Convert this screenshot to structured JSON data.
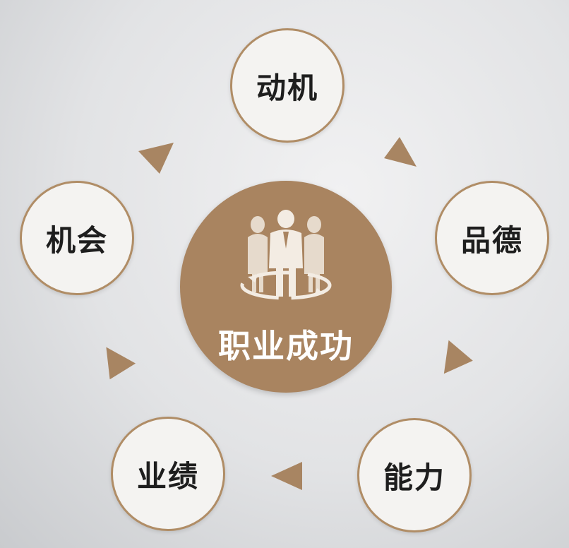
{
  "center": {
    "label": "职业成功",
    "icon": "team-people-icon"
  },
  "nodes": {
    "motive": "动机",
    "virtue": "品德",
    "ability": "能力",
    "performance": "业绩",
    "opportunity": "机会"
  },
  "colors": {
    "accent": "#a98460",
    "node_border": "#b08d66",
    "node_fill": "#f4f3f1",
    "arrow": "#a88562"
  }
}
